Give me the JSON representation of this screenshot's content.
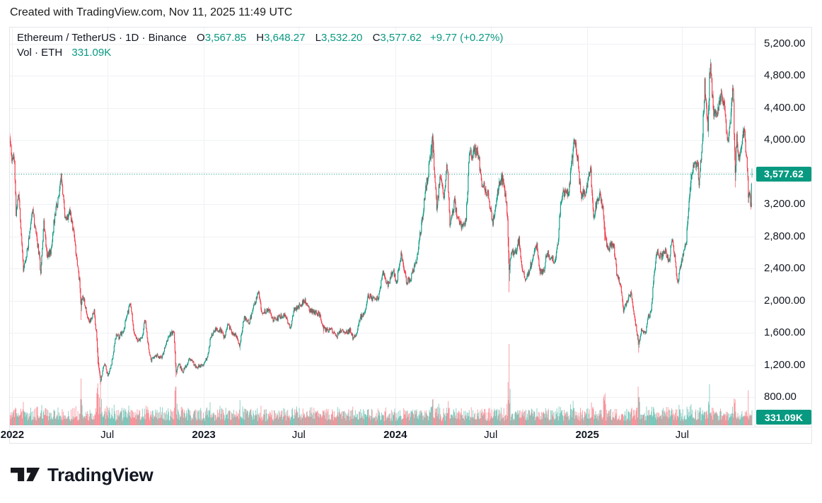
{
  "caption": "Created with TradingView.com, Nov 11, 2025 11:49 UTC",
  "legend": {
    "title": "Ethereum / TetherUS · 1D · Binance",
    "open_label": "O",
    "open": "3,567.85",
    "high_label": "H",
    "high": "3,648.27",
    "low_label": "L",
    "low": "3,532.20",
    "close_label": "C",
    "close": "3,577.62",
    "change": "+9.77 (+0.27%)",
    "volume_title": "Vol · ETH",
    "volume": "331.09K"
  },
  "price_scale": {
    "last_price_label": "3,577.62",
    "last_volume_label": "331.09K"
  },
  "logo": {
    "text": "TradingView"
  },
  "colors": {
    "up": "#089981",
    "down": "#f23645",
    "volume_up": "rgba(8,153,129,0.45)",
    "volume_down": "rgba(242,54,69,0.45)",
    "grid": "#f0f1f5",
    "axis_border": "#e3e5ea",
    "text": "#131722",
    "badge_bg": "#089981",
    "price_line": "#089981"
  },
  "chart_data": {
    "type": "candlestick_with_volume",
    "title": "Ethereum / TetherUS · 1D · Binance",
    "symbol": "Ethereum / TetherUS",
    "exchange": "Binance",
    "interval": "1D",
    "legend_position": "top-left",
    "grid": true,
    "x_range": [
      "2021-12-26",
      "2025-11-11"
    ],
    "visible_price_range": [
      430,
      5410
    ],
    "x_ticks": [
      {
        "label": "2022",
        "date": "2022-01-01",
        "major": true
      },
      {
        "label": "Jul",
        "date": "2022-07-01",
        "major": false
      },
      {
        "label": "2023",
        "date": "2023-01-01",
        "major": true
      },
      {
        "label": "Jul",
        "date": "2023-07-01",
        "major": false
      },
      {
        "label": "2024",
        "date": "2024-01-01",
        "major": true
      },
      {
        "label": "Jul",
        "date": "2024-07-01",
        "major": false
      },
      {
        "label": "2025",
        "date": "2025-01-01",
        "major": true
      },
      {
        "label": "Jul",
        "date": "2025-07-01",
        "major": false
      }
    ],
    "y_ticks": [
      {
        "value": 5200,
        "label": "5,200.00"
      },
      {
        "value": 4800,
        "label": "4,800.00"
      },
      {
        "value": 4400,
        "label": "4,400.00"
      },
      {
        "value": 4000,
        "label": "4,000.00"
      },
      {
        "value": 3200,
        "label": "3,200.00"
      },
      {
        "value": 2800,
        "label": "2,800.00"
      },
      {
        "value": 2400,
        "label": "2,400.00"
      },
      {
        "value": 2000,
        "label": "2,000.00"
      },
      {
        "value": 1600,
        "label": "1,600.00"
      },
      {
        "value": 1200,
        "label": "1,200.00"
      },
      {
        "value": 800,
        "label": "800.00"
      }
    ],
    "y_gridline_values": [
      800,
      1200,
      1600,
      2000,
      2400,
      2800,
      3200,
      3600,
      4000,
      4400,
      4800,
      5200
    ],
    "last_candle": {
      "open": 3567.85,
      "high": 3648.27,
      "low": 3532.2,
      "close": 3577.62,
      "change": 9.77,
      "change_pct": 0.27,
      "volume_label": "331.09K"
    },
    "last_price_line": 3577.62,
    "price_path_anchors": [
      [
        "2021-12-26",
        4080
      ],
      [
        "2022-01-01",
        3730
      ],
      [
        "2022-01-05",
        3790
      ],
      [
        "2022-01-08",
        3100
      ],
      [
        "2022-01-13",
        3310
      ],
      [
        "2022-01-22",
        2400
      ],
      [
        "2022-01-24",
        2450
      ],
      [
        "2022-01-31",
        2690
      ],
      [
        "2022-02-08",
        3150
      ],
      [
        "2022-02-14",
        2880
      ],
      [
        "2022-02-21",
        2570
      ],
      [
        "2022-02-24",
        2350
      ],
      [
        "2022-03-02",
        2970
      ],
      [
        "2022-03-08",
        2580
      ],
      [
        "2022-03-15",
        2590
      ],
      [
        "2022-03-22",
        3020
      ],
      [
        "2022-04-04",
        3520
      ],
      [
        "2022-04-12",
        3020
      ],
      [
        "2022-04-21",
        3100
      ],
      [
        "2022-04-30",
        2740
      ],
      [
        "2022-05-09",
        2240
      ],
      [
        "2022-05-12",
        1960
      ],
      [
        "2022-05-16",
        2060
      ],
      [
        "2022-05-27",
        1730
      ],
      [
        "2022-06-06",
        1860
      ],
      [
        "2022-06-11",
        1530
      ],
      [
        "2022-06-14",
        1210
      ],
      [
        "2022-06-18",
        1000
      ],
      [
        "2022-06-26",
        1230
      ],
      [
        "2022-07-02",
        1060
      ],
      [
        "2022-07-09",
        1220
      ],
      [
        "2022-07-18",
        1570
      ],
      [
        "2022-07-23",
        1550
      ],
      [
        "2022-08-01",
        1630
      ],
      [
        "2022-08-14",
        1980
      ],
      [
        "2022-08-20",
        1620
      ],
      [
        "2022-08-28",
        1500
      ],
      [
        "2022-09-06",
        1560
      ],
      [
        "2022-09-11",
        1770
      ],
      [
        "2022-09-16",
        1470
      ],
      [
        "2022-09-22",
        1250
      ],
      [
        "2022-10-01",
        1320
      ],
      [
        "2022-10-13",
        1290
      ],
      [
        "2022-10-26",
        1560
      ],
      [
        "2022-11-05",
        1630
      ],
      [
        "2022-11-09",
        1100
      ],
      [
        "2022-11-14",
        1220
      ],
      [
        "2022-11-22",
        1110
      ],
      [
        "2022-12-05",
        1280
      ],
      [
        "2022-12-17",
        1170
      ],
      [
        "2022-12-31",
        1195
      ],
      [
        "2023-01-09",
        1320
      ],
      [
        "2023-01-14",
        1550
      ],
      [
        "2023-01-21",
        1630
      ],
      [
        "2023-02-02",
        1640
      ],
      [
        "2023-02-09",
        1540
      ],
      [
        "2023-02-16",
        1700
      ],
      [
        "2023-02-25",
        1600
      ],
      [
        "2023-03-05",
        1560
      ],
      [
        "2023-03-10",
        1430
      ],
      [
        "2023-03-19",
        1800
      ],
      [
        "2023-03-28",
        1720
      ],
      [
        "2023-04-05",
        1900
      ],
      [
        "2023-04-16",
        2100
      ],
      [
        "2023-04-21",
        1850
      ],
      [
        "2023-04-26",
        1870
      ],
      [
        "2023-05-06",
        1880
      ],
      [
        "2023-05-12",
        1760
      ],
      [
        "2023-05-25",
        1790
      ],
      [
        "2023-06-06",
        1820
      ],
      [
        "2023-06-10",
        1740
      ],
      [
        "2023-06-15",
        1650
      ],
      [
        "2023-06-22",
        1880
      ],
      [
        "2023-07-03",
        1940
      ],
      [
        "2023-07-14",
        2000
      ],
      [
        "2023-07-23",
        1870
      ],
      [
        "2023-08-08",
        1840
      ],
      [
        "2023-08-17",
        1680
      ],
      [
        "2023-08-22",
        1630
      ],
      [
        "2023-09-01",
        1640
      ],
      [
        "2023-09-11",
        1550
      ],
      [
        "2023-09-18",
        1640
      ],
      [
        "2023-09-27",
        1590
      ],
      [
        "2023-10-07",
        1630
      ],
      [
        "2023-10-12",
        1540
      ],
      [
        "2023-10-20",
        1600
      ],
      [
        "2023-10-26",
        1790
      ],
      [
        "2023-11-03",
        1830
      ],
      [
        "2023-11-10",
        2080
      ],
      [
        "2023-11-20",
        2020
      ],
      [
        "2023-11-29",
        2030
      ],
      [
        "2023-12-09",
        2350
      ],
      [
        "2023-12-18",
        2200
      ],
      [
        "2023-12-28",
        2380
      ],
      [
        "2024-01-03",
        2210
      ],
      [
        "2024-01-12",
        2580
      ],
      [
        "2024-01-23",
        2230
      ],
      [
        "2024-02-01",
        2300
      ],
      [
        "2024-02-10",
        2500
      ],
      [
        "2024-02-20",
        2940
      ],
      [
        "2024-02-28",
        3380
      ],
      [
        "2024-03-05",
        3640
      ],
      [
        "2024-03-12",
        4070
      ],
      [
        "2024-03-16",
        3520
      ],
      [
        "2024-03-20",
        3160
      ],
      [
        "2024-03-27",
        3580
      ],
      [
        "2024-04-02",
        3280
      ],
      [
        "2024-04-09",
        3700
      ],
      [
        "2024-04-14",
        2940
      ],
      [
        "2024-04-23",
        3220
      ],
      [
        "2024-05-01",
        2970
      ],
      [
        "2024-05-10",
        2910
      ],
      [
        "2024-05-15",
        3030
      ],
      [
        "2024-05-21",
        3790
      ],
      [
        "2024-05-28",
        3850
      ],
      [
        "2024-06-06",
        3870
      ],
      [
        "2024-06-14",
        3480
      ],
      [
        "2024-06-24",
        3350
      ],
      [
        "2024-07-05",
        2980
      ],
      [
        "2024-07-08",
        3070
      ],
      [
        "2024-07-17",
        3450
      ],
      [
        "2024-07-22",
        3540
      ],
      [
        "2024-07-31",
        3230
      ],
      [
        "2024-08-02",
        2990
      ],
      [
        "2024-08-05",
        2420
      ],
      [
        "2024-08-09",
        2600
      ],
      [
        "2024-08-18",
        2610
      ],
      [
        "2024-08-24",
        2770
      ],
      [
        "2024-08-28",
        2460
      ],
      [
        "2024-09-06",
        2230
      ],
      [
        "2024-09-14",
        2420
      ],
      [
        "2024-09-24",
        2650
      ],
      [
        "2024-09-27",
        2690
      ],
      [
        "2024-10-02",
        2360
      ],
      [
        "2024-10-10",
        2370
      ],
      [
        "2024-10-16",
        2610
      ],
      [
        "2024-10-24",
        2520
      ],
      [
        "2024-11-01",
        2510
      ],
      [
        "2024-11-06",
        2720
      ],
      [
        "2024-11-12",
        3280
      ],
      [
        "2024-11-21",
        3360
      ],
      [
        "2024-11-26",
        3320
      ],
      [
        "2024-12-04",
        3840
      ],
      [
        "2024-12-08",
        4000
      ],
      [
        "2024-12-12",
        3880
      ],
      [
        "2024-12-20",
        3300
      ],
      [
        "2024-12-28",
        3370
      ],
      [
        "2025-01-02",
        3450
      ],
      [
        "2025-01-07",
        3680
      ],
      [
        "2025-01-13",
        3050
      ],
      [
        "2025-01-21",
        3280
      ],
      [
        "2025-01-25",
        3310
      ],
      [
        "2025-02-01",
        3110
      ],
      [
        "2025-02-03",
        2870
      ],
      [
        "2025-02-09",
        2630
      ],
      [
        "2025-02-15",
        2690
      ],
      [
        "2025-02-21",
        2660
      ],
      [
        "2025-02-27",
        2300
      ],
      [
        "2025-03-06",
        2200
      ],
      [
        "2025-03-11",
        1870
      ],
      [
        "2025-03-19",
        2010
      ],
      [
        "2025-03-25",
        2090
      ],
      [
        "2025-03-31",
        1820
      ],
      [
        "2025-04-07",
        1550
      ],
      [
        "2025-04-09",
        1470
      ],
      [
        "2025-04-14",
        1640
      ],
      [
        "2025-04-22",
        1580
      ],
      [
        "2025-04-26",
        1790
      ],
      [
        "2025-05-02",
        1840
      ],
      [
        "2025-05-09",
        2350
      ],
      [
        "2025-05-14",
        2600
      ],
      [
        "2025-05-23",
        2550
      ],
      [
        "2025-05-30",
        2630
      ],
      [
        "2025-06-06",
        2480
      ],
      [
        "2025-06-11",
        2780
      ],
      [
        "2025-06-17",
        2530
      ],
      [
        "2025-06-22",
        2230
      ],
      [
        "2025-06-28",
        2430
      ],
      [
        "2025-07-03",
        2570
      ],
      [
        "2025-07-09",
        2770
      ],
      [
        "2025-07-18",
        3550
      ],
      [
        "2025-07-25",
        3730
      ],
      [
        "2025-07-31",
        3700
      ],
      [
        "2025-08-02",
        3430
      ],
      [
        "2025-08-08",
        3950
      ],
      [
        "2025-08-13",
        4700
      ],
      [
        "2025-08-19",
        4150
      ],
      [
        "2025-08-22",
        4780
      ],
      [
        "2025-08-24",
        4930
      ],
      [
        "2025-08-29",
        4380
      ],
      [
        "2025-09-05",
        4300
      ],
      [
        "2025-09-12",
        4550
      ],
      [
        "2025-09-18",
        4480
      ],
      [
        "2025-09-25",
        3960
      ],
      [
        "2025-10-01",
        4200
      ],
      [
        "2025-10-06",
        4700
      ],
      [
        "2025-10-10",
        3560
      ],
      [
        "2025-10-13",
        4050
      ],
      [
        "2025-10-17",
        3750
      ],
      [
        "2025-10-21",
        3890
      ],
      [
        "2025-10-27",
        4150
      ],
      [
        "2025-11-02",
        3680
      ],
      [
        "2025-11-04",
        3300
      ],
      [
        "2025-11-07",
        3350
      ],
      [
        "2025-11-09",
        3120
      ],
      [
        "2025-11-10",
        3480
      ],
      [
        "2025-11-11",
        3577.62
      ]
    ],
    "volume_spike_days": [
      [
        "2022-05-12",
        3.4
      ],
      [
        "2022-06-13",
        3.0
      ],
      [
        "2022-06-18",
        2.4
      ],
      [
        "2022-11-09",
        2.6
      ],
      [
        "2023-03-11",
        1.7
      ],
      [
        "2023-08-17",
        1.8
      ],
      [
        "2024-03-12",
        2.6
      ],
      [
        "2024-08-05",
        4.0
      ],
      [
        "2024-12-05",
        1.6
      ],
      [
        "2025-02-03",
        2.6
      ],
      [
        "2025-04-09",
        3.2
      ],
      [
        "2025-07-18",
        1.6
      ],
      [
        "2025-08-22",
        1.7
      ],
      [
        "2025-10-10",
        2.4
      ],
      [
        "2025-11-04",
        1.5
      ]
    ],
    "noise_seed": 11
  }
}
